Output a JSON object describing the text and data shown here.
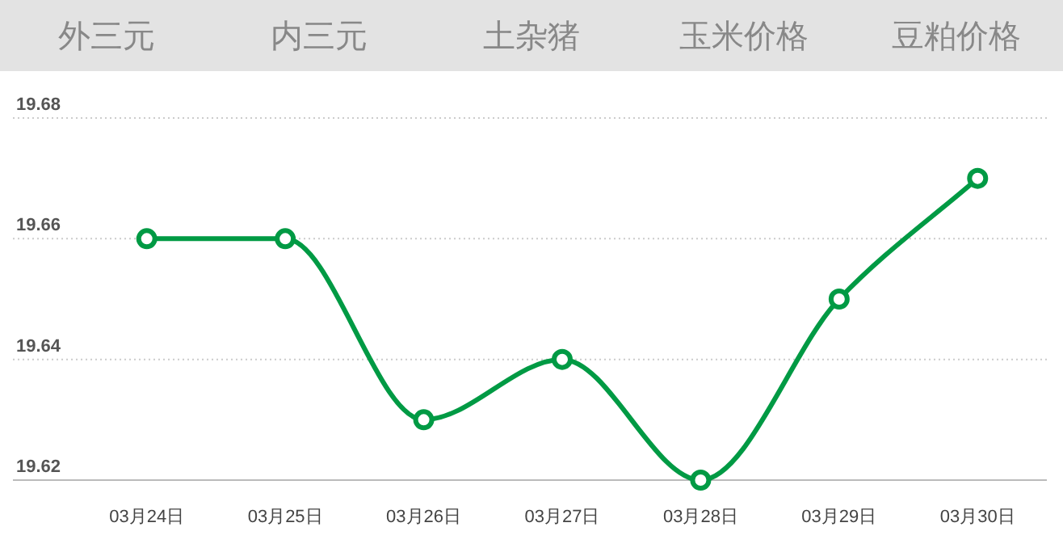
{
  "chart_data": {
    "type": "line",
    "annotations": [
      "外三元",
      "内三元",
      "土杂猪",
      "玉米价格",
      "豆粕价格"
    ],
    "categories": [
      "03月24日",
      "03月25日",
      "03月26日",
      "03月27日",
      "03月28日",
      "03月29日",
      "03月30日"
    ],
    "series": [
      {
        "color": "#009a44",
        "values": [
          19.66,
          19.66,
          19.63,
          19.64,
          19.62,
          19.65,
          19.67
        ]
      }
    ],
    "ylim": [
      19.62,
      19.68
    ],
    "yticks": [
      19.62,
      19.64,
      19.66,
      19.68
    ],
    "grid": "y",
    "marker": "circle",
    "line_style": "solid"
  }
}
